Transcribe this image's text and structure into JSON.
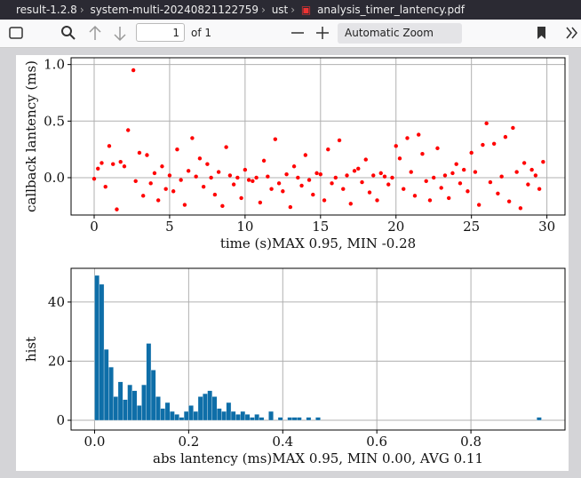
{
  "breadcrumb": [
    "result-1.2.8",
    "system-multi-20240821122759",
    "ust",
    "analysis_timer_lantency.pdf"
  ],
  "toolbar": {
    "page": "1",
    "page_count": "of 1",
    "zoom": "Automatic Zoom"
  },
  "chart_data": [
    {
      "type": "scatter",
      "ylabel": "callback lantency (ms)",
      "xlabel": "time (s)MAX 0.95, MIN -0.28",
      "color": "#ff0000",
      "grid": true,
      "x": [
        0,
        0.25,
        0.5,
        0.75,
        1,
        1.25,
        1.5,
        1.75,
        2,
        2.25,
        2.6,
        2.75,
        3,
        3.25,
        3.5,
        3.75,
        4,
        4.25,
        4.5,
        4.75,
        5,
        5.25,
        5.5,
        5.75,
        6,
        6.25,
        6.5,
        6.75,
        7,
        7.25,
        7.5,
        7.75,
        8,
        8.25,
        8.5,
        8.75,
        9,
        9.25,
        9.5,
        9.75,
        10,
        10.25,
        10.5,
        10.75,
        11,
        11.25,
        11.5,
        11.75,
        12,
        12.25,
        12.5,
        12.75,
        13,
        13.25,
        13.5,
        13.75,
        14,
        14.25,
        14.5,
        14.75,
        15,
        15.25,
        15.5,
        15.75,
        16,
        16.25,
        16.5,
        16.75,
        17,
        17.25,
        17.5,
        17.75,
        18,
        18.25,
        18.5,
        18.75,
        19,
        19.25,
        19.5,
        19.75,
        20,
        20.25,
        20.5,
        20.75,
        21,
        21.25,
        21.5,
        21.75,
        22,
        22.25,
        22.5,
        22.75,
        23,
        23.25,
        23.5,
        23.75,
        24,
        24.25,
        24.5,
        24.75,
        25,
        25.25,
        25.5,
        25.75,
        26,
        26.25,
        26.5,
        26.75,
        27,
        27.25,
        27.5,
        27.75,
        28,
        28.25,
        28.5,
        28.75,
        29,
        29.25,
        29.5,
        29.75
      ],
      "values": [
        -0.01,
        0.08,
        0.13,
        -0.08,
        0.28,
        0.12,
        -0.28,
        0.14,
        0.1,
        0.42,
        0.95,
        -0.03,
        0.22,
        -0.16,
        0.2,
        -0.05,
        0.04,
        -0.2,
        0.1,
        -0.1,
        0.02,
        -0.12,
        0.25,
        -0.02,
        -0.24,
        0.06,
        0.35,
        0.01,
        0.17,
        -0.08,
        0.12,
        0.0,
        -0.15,
        0.05,
        -0.25,
        0.27,
        0.02,
        -0.06,
        0.0,
        -0.18,
        0.07,
        -0.02,
        -0.03,
        0.0,
        -0.22,
        0.15,
        0.01,
        -0.1,
        0.34,
        -0.05,
        -0.12,
        0.03,
        -0.26,
        0.1,
        0.0,
        -0.07,
        0.2,
        -0.02,
        -0.15,
        0.04,
        0.03,
        -0.2,
        0.25,
        -0.05,
        0.0,
        0.33,
        -0.1,
        0.02,
        -0.23,
        0.06,
        0.08,
        -0.04,
        0.16,
        -0.13,
        0.02,
        -0.2,
        0.04,
        0.01,
        -0.06,
        0.0,
        0.28,
        0.17,
        -0.1,
        0.35,
        0.05,
        -0.16,
        0.38,
        0.21,
        -0.03,
        -0.2,
        0.0,
        0.26,
        -0.09,
        0.02,
        -0.18,
        0.04,
        0.12,
        -0.05,
        0.07,
        -0.12,
        0.22,
        0.05,
        -0.24,
        0.29,
        0.48,
        -0.04,
        0.3,
        -0.14,
        0.01,
        0.36,
        -0.21,
        0.44,
        0.05,
        -0.27,
        0.13,
        -0.06,
        0.07,
        0.02,
        -0.1,
        0.14
      ],
      "xlim": [
        -1.53,
        31.2
      ],
      "ylim": [
        -0.33,
        1.06
      ],
      "xticks": [
        0,
        5,
        10,
        15,
        20,
        25,
        30
      ],
      "yticks": [
        {
          "value": 0,
          "label": "0.0"
        },
        {
          "value": 0.5,
          "label": "0.5"
        },
        {
          "value": 1,
          "label": "1.0"
        }
      ]
    },
    {
      "type": "histogram",
      "ylabel": "hist",
      "xlabel": "abs lantency (ms)MAX 0.95, MIN 0.00, AVG 0.11",
      "color": "#0e6ea8",
      "grid": true,
      "bins": [
        0,
        0.01,
        0.02,
        0.03,
        0.04,
        0.05,
        0.06,
        0.07,
        0.08,
        0.09,
        0.1,
        0.11,
        0.12,
        0.13,
        0.14,
        0.15,
        0.16,
        0.17,
        0.18,
        0.19,
        0.2,
        0.21,
        0.22,
        0.23,
        0.24,
        0.25,
        0.26,
        0.27,
        0.28,
        0.29,
        0.3,
        0.31,
        0.32,
        0.33,
        0.34,
        0.35,
        0.36,
        0.37,
        0.38,
        0.39,
        0.4,
        0.41,
        0.42,
        0.43,
        0.44,
        0.45,
        0.46,
        0.47,
        0.48,
        0.49,
        0.5,
        0.51,
        0.52,
        0.53,
        0.54,
        0.55,
        0.56,
        0.57,
        0.58,
        0.59,
        0.6,
        0.61,
        0.62,
        0.63,
        0.64,
        0.65,
        0.66,
        0.67,
        0.68,
        0.69,
        0.7,
        0.71,
        0.72,
        0.73,
        0.74,
        0.75,
        0.76,
        0.77,
        0.78,
        0.79,
        0.8,
        0.81,
        0.82,
        0.83,
        0.84,
        0.85,
        0.86,
        0.87,
        0.88,
        0.89,
        0.9,
        0.91,
        0.92,
        0.93,
        0.94,
        0.95
      ],
      "values": [
        49,
        46,
        24,
        18,
        8,
        13,
        7,
        12,
        10,
        5,
        12,
        26,
        17,
        8,
        4,
        6,
        3,
        2,
        1,
        3,
        5,
        3,
        8,
        9,
        10,
        8,
        4,
        3,
        6,
        3,
        2,
        3,
        2,
        1,
        2,
        1,
        0,
        3,
        0,
        1,
        0,
        1,
        1,
        1,
        0,
        1,
        0,
        1,
        0,
        0,
        0,
        0,
        0,
        0,
        0,
        0,
        0,
        0,
        0,
        0,
        0,
        0,
        0,
        0,
        0,
        0,
        0,
        0,
        0,
        0,
        0,
        0,
        0,
        0,
        0,
        0,
        0,
        0,
        0,
        0,
        0,
        0,
        0,
        0,
        0,
        0,
        0,
        0,
        0,
        0,
        0,
        0,
        0,
        0,
        1
      ],
      "xlim": [
        -0.05,
        1.0
      ],
      "ylim": [
        -3.3,
        51.4
      ],
      "xticks": [
        {
          "value": 0,
          "label": "0.0"
        },
        {
          "value": 0.2,
          "label": "0.2"
        },
        {
          "value": 0.4,
          "label": "0.4"
        },
        {
          "value": 0.6,
          "label": "0.6"
        },
        {
          "value": 0.8,
          "label": "0.8"
        }
      ],
      "yticks": [
        0,
        20,
        40
      ]
    }
  ]
}
